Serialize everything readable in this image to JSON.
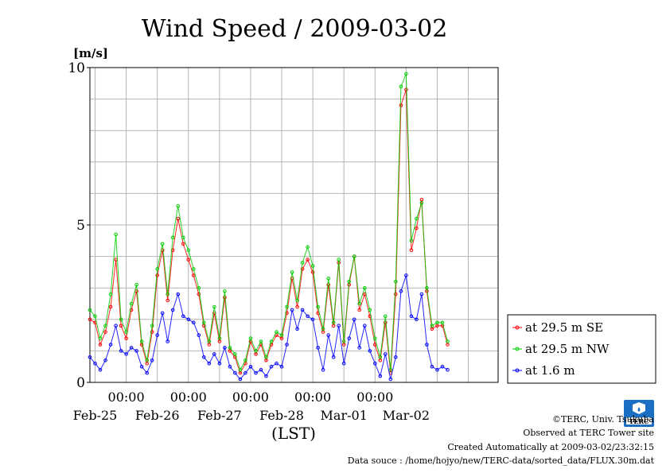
{
  "chart_data": {
    "type": "line",
    "title": "Wind Speed / 2009-03-02",
    "ylabel": "[m/s]",
    "xlabel": "(LST)",
    "ylim": [
      0,
      10
    ],
    "xlim": [
      "2009-02-24 10:00",
      "2009-03-02 23:30"
    ],
    "yticks": [
      0,
      5,
      10
    ],
    "x_time_ticks": [
      "00:00",
      "00:00",
      "00:00",
      "00:00",
      "00:00"
    ],
    "x_date_ticks": [
      "Feb-25",
      "Feb-26",
      "Feb-27",
      "Feb-28",
      "Mar-01",
      "Mar-02"
    ],
    "grid": true,
    "legend_position": "right",
    "series": [
      {
        "name": "at 29.5 m SE",
        "color": "#ff0000",
        "points": [
          [
            "02-24 10:00",
            2.0
          ],
          [
            "02-24 12:00",
            1.9
          ],
          [
            "02-24 14:00",
            1.2
          ],
          [
            "02-24 16:00",
            1.6
          ],
          [
            "02-24 18:00",
            2.4
          ],
          [
            "02-24 20:00",
            3.9
          ],
          [
            "02-24 22:00",
            1.8
          ],
          [
            "02-25 00:00",
            1.4
          ],
          [
            "02-25 02:00",
            2.3
          ],
          [
            "02-25 04:00",
            2.9
          ],
          [
            "02-25 06:00",
            1.2
          ],
          [
            "02-25 08:00",
            0.6
          ],
          [
            "02-25 10:00",
            1.6
          ],
          [
            "02-25 12:00",
            3.4
          ],
          [
            "02-25 14:00",
            4.2
          ],
          [
            "02-25 16:00",
            2.6
          ],
          [
            "02-25 18:00",
            4.2
          ],
          [
            "02-25 20:00",
            5.2
          ],
          [
            "02-25 22:00",
            4.4
          ],
          [
            "02-26 00:00",
            3.9
          ],
          [
            "02-26 02:00",
            3.4
          ],
          [
            "02-26 04:00",
            2.8
          ],
          [
            "02-26 06:00",
            1.8
          ],
          [
            "02-26 08:00",
            1.2
          ],
          [
            "02-26 10:00",
            2.2
          ],
          [
            "02-26 12:00",
            1.3
          ],
          [
            "02-26 14:00",
            2.7
          ],
          [
            "02-26 16:00",
            1.0
          ],
          [
            "02-26 18:00",
            0.8
          ],
          [
            "02-26 20:00",
            0.3
          ],
          [
            "02-26 22:00",
            0.6
          ],
          [
            "02-27 00:00",
            1.3
          ],
          [
            "02-27 02:00",
            0.9
          ],
          [
            "02-27 04:00",
            1.2
          ],
          [
            "02-27 06:00",
            0.7
          ],
          [
            "02-27 08:00",
            1.2
          ],
          [
            "02-27 10:00",
            1.5
          ],
          [
            "02-27 12:00",
            1.4
          ],
          [
            "02-27 14:00",
            2.2
          ],
          [
            "02-27 16:00",
            3.3
          ],
          [
            "02-27 18:00",
            2.4
          ],
          [
            "02-27 20:00",
            3.6
          ],
          [
            "02-27 22:00",
            3.9
          ],
          [
            "02-28 00:00",
            3.5
          ],
          [
            "02-28 02:00",
            2.2
          ],
          [
            "02-28 04:00",
            1.6
          ],
          [
            "02-28 06:00",
            3.1
          ],
          [
            "02-28 08:00",
            1.8
          ],
          [
            "02-28 10:00",
            3.8
          ],
          [
            "02-28 12:00",
            1.2
          ],
          [
            "02-28 14:00",
            3.1
          ],
          [
            "02-28 16:00",
            4.0
          ],
          [
            "02-28 18:00",
            2.3
          ],
          [
            "02-28 20:00",
            2.8
          ],
          [
            "02-28 22:00",
            2.1
          ],
          [
            "03-01 00:00",
            1.2
          ],
          [
            "03-01 02:00",
            0.7
          ],
          [
            "03-01 04:00",
            1.9
          ],
          [
            "03-01 06:00",
            0.3
          ],
          [
            "03-01 08:00",
            2.8
          ],
          [
            "03-01 10:00",
            8.8
          ],
          [
            "03-01 12:00",
            9.3
          ],
          [
            "03-01 14:00",
            4.2
          ],
          [
            "03-01 16:00",
            4.9
          ],
          [
            "03-01 18:00",
            5.8
          ],
          [
            "03-01 20:00",
            2.9
          ],
          [
            "03-01 22:00",
            1.7
          ],
          [
            "03-02 00:00",
            1.8
          ],
          [
            "03-02 02:00",
            1.8
          ],
          [
            "03-02 04:00",
            1.2
          ]
        ]
      },
      {
        "name": "at 29.5 m NW",
        "color": "#00cc00",
        "points": [
          [
            "02-24 10:00",
            2.3
          ],
          [
            "02-24 12:00",
            2.1
          ],
          [
            "02-24 14:00",
            1.4
          ],
          [
            "02-24 16:00",
            1.8
          ],
          [
            "02-24 18:00",
            2.8
          ],
          [
            "02-24 20:00",
            4.7
          ],
          [
            "02-24 22:00",
            2.0
          ],
          [
            "02-25 00:00",
            1.6
          ],
          [
            "02-25 02:00",
            2.5
          ],
          [
            "02-25 04:00",
            3.1
          ],
          [
            "02-25 06:00",
            1.3
          ],
          [
            "02-25 08:00",
            0.7
          ],
          [
            "02-25 10:00",
            1.8
          ],
          [
            "02-25 12:00",
            3.6
          ],
          [
            "02-25 14:00",
            4.4
          ],
          [
            "02-25 16:00",
            2.8
          ],
          [
            "02-25 18:00",
            4.6
          ],
          [
            "02-25 20:00",
            5.6
          ],
          [
            "02-25 22:00",
            4.6
          ],
          [
            "02-26 00:00",
            4.2
          ],
          [
            "02-26 02:00",
            3.6
          ],
          [
            "02-26 04:00",
            3.0
          ],
          [
            "02-26 06:00",
            1.9
          ],
          [
            "02-26 08:00",
            1.3
          ],
          [
            "02-26 10:00",
            2.4
          ],
          [
            "02-26 12:00",
            1.4
          ],
          [
            "02-26 14:00",
            2.9
          ],
          [
            "02-26 16:00",
            1.1
          ],
          [
            "02-26 18:00",
            0.9
          ],
          [
            "02-26 20:00",
            0.4
          ],
          [
            "02-26 22:00",
            0.7
          ],
          [
            "02-27 00:00",
            1.4
          ],
          [
            "02-27 02:00",
            1.0
          ],
          [
            "02-27 04:00",
            1.3
          ],
          [
            "02-27 06:00",
            0.8
          ],
          [
            "02-27 08:00",
            1.3
          ],
          [
            "02-27 10:00",
            1.6
          ],
          [
            "02-27 12:00",
            1.5
          ],
          [
            "02-27 14:00",
            2.4
          ],
          [
            "02-27 16:00",
            3.5
          ],
          [
            "02-27 18:00",
            2.6
          ],
          [
            "02-27 20:00",
            3.8
          ],
          [
            "02-27 22:00",
            4.3
          ],
          [
            "02-28 00:00",
            3.7
          ],
          [
            "02-28 02:00",
            2.4
          ],
          [
            "02-28 04:00",
            1.7
          ],
          [
            "02-28 06:00",
            3.3
          ],
          [
            "02-28 08:00",
            1.9
          ],
          [
            "02-28 10:00",
            3.9
          ],
          [
            "02-28 12:00",
            1.3
          ],
          [
            "02-28 14:00",
            3.2
          ],
          [
            "02-28 16:00",
            4.0
          ],
          [
            "02-28 18:00",
            2.5
          ],
          [
            "02-28 20:00",
            3.0
          ],
          [
            "02-28 22:00",
            2.3
          ],
          [
            "03-01 00:00",
            1.4
          ],
          [
            "03-01 02:00",
            0.8
          ],
          [
            "03-01 04:00",
            2.1
          ],
          [
            "03-01 06:00",
            0.4
          ],
          [
            "03-01 08:00",
            3.2
          ],
          [
            "03-01 10:00",
            9.4
          ],
          [
            "03-01 12:00",
            9.8
          ],
          [
            "03-01 14:00",
            4.5
          ],
          [
            "03-01 16:00",
            5.2
          ],
          [
            "03-01 18:00",
            5.7
          ],
          [
            "03-01 20:00",
            3.0
          ],
          [
            "03-01 22:00",
            1.8
          ],
          [
            "03-02 00:00",
            1.9
          ],
          [
            "03-02 02:00",
            1.9
          ],
          [
            "03-02 04:00",
            1.3
          ]
        ]
      },
      {
        "name": "at 1.6 m",
        "color": "#0000ff",
        "points": [
          [
            "02-24 10:00",
            0.8
          ],
          [
            "02-24 12:00",
            0.6
          ],
          [
            "02-24 14:00",
            0.4
          ],
          [
            "02-24 16:00",
            0.7
          ],
          [
            "02-24 18:00",
            1.2
          ],
          [
            "02-24 20:00",
            1.8
          ],
          [
            "02-24 22:00",
            1.0
          ],
          [
            "02-25 00:00",
            0.9
          ],
          [
            "02-25 02:00",
            1.1
          ],
          [
            "02-25 04:00",
            1.0
          ],
          [
            "02-25 06:00",
            0.5
          ],
          [
            "02-25 08:00",
            0.3
          ],
          [
            "02-25 10:00",
            0.7
          ],
          [
            "02-25 12:00",
            1.5
          ],
          [
            "02-25 14:00",
            2.2
          ],
          [
            "02-25 16:00",
            1.3
          ],
          [
            "02-25 18:00",
            2.3
          ],
          [
            "02-25 20:00",
            2.8
          ],
          [
            "02-25 22:00",
            2.1
          ],
          [
            "02-26 00:00",
            2.0
          ],
          [
            "02-26 02:00",
            1.9
          ],
          [
            "02-26 04:00",
            1.5
          ],
          [
            "02-26 06:00",
            0.8
          ],
          [
            "02-26 08:00",
            0.6
          ],
          [
            "02-26 10:00",
            0.9
          ],
          [
            "02-26 12:00",
            0.6
          ],
          [
            "02-26 14:00",
            1.1
          ],
          [
            "02-26 16:00",
            0.5
          ],
          [
            "02-26 18:00",
            0.3
          ],
          [
            "02-26 20:00",
            0.1
          ],
          [
            "02-26 22:00",
            0.3
          ],
          [
            "02-27 00:00",
            0.5
          ],
          [
            "02-27 02:00",
            0.3
          ],
          [
            "02-27 04:00",
            0.4
          ],
          [
            "02-27 06:00",
            0.2
          ],
          [
            "02-27 08:00",
            0.5
          ],
          [
            "02-27 10:00",
            0.6
          ],
          [
            "02-27 12:00",
            0.5
          ],
          [
            "02-27 14:00",
            1.2
          ],
          [
            "02-27 16:00",
            2.3
          ],
          [
            "02-27 18:00",
            1.7
          ],
          [
            "02-27 20:00",
            2.3
          ],
          [
            "02-27 22:00",
            2.1
          ],
          [
            "02-28 00:00",
            2.0
          ],
          [
            "02-28 02:00",
            1.1
          ],
          [
            "02-28 04:00",
            0.4
          ],
          [
            "02-28 06:00",
            1.5
          ],
          [
            "02-28 08:00",
            0.8
          ],
          [
            "02-28 10:00",
            1.8
          ],
          [
            "02-28 12:00",
            0.6
          ],
          [
            "02-28 14:00",
            1.4
          ],
          [
            "02-28 16:00",
            2.0
          ],
          [
            "02-28 18:00",
            1.1
          ],
          [
            "02-28 20:00",
            1.8
          ],
          [
            "02-28 22:00",
            1.0
          ],
          [
            "03-01 00:00",
            0.6
          ],
          [
            "03-01 02:00",
            0.2
          ],
          [
            "03-01 04:00",
            0.9
          ],
          [
            "03-01 06:00",
            0.1
          ],
          [
            "03-01 08:00",
            0.8
          ],
          [
            "03-01 10:00",
            2.9
          ],
          [
            "03-01 12:00",
            3.4
          ],
          [
            "03-01 14:00",
            2.1
          ],
          [
            "03-01 16:00",
            2.0
          ],
          [
            "03-01 18:00",
            2.8
          ],
          [
            "03-01 20:00",
            1.2
          ],
          [
            "03-01 22:00",
            0.5
          ],
          [
            "03-02 00:00",
            0.4
          ],
          [
            "03-02 02:00",
            0.5
          ],
          [
            "03-02 04:00",
            0.4
          ]
        ]
      }
    ]
  },
  "footer": {
    "copyright": "©TERC, Univ. Tsukuba",
    "observed": "Observed at TERC Tower site",
    "created": "Created Automatically at 2009-03-02/23:32:15",
    "source": "Data souce : /home/hojyo/new/TERC-data/sorted_data/FLUX.30m.dat"
  },
  "logo": {
    "text": "TERC",
    "color": "#1a6fc4"
  }
}
